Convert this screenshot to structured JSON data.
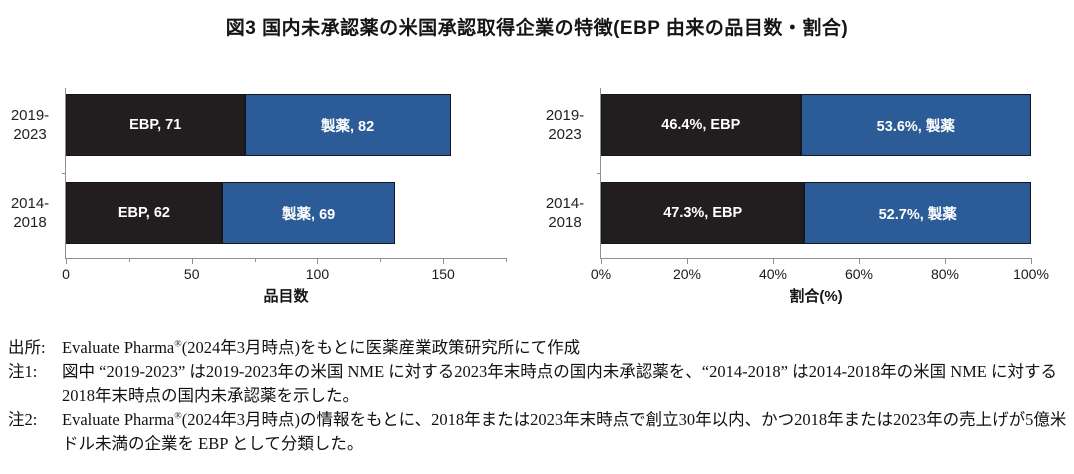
{
  "title": "図3 国内未承認薬の米国承認取得企業の特徴(EBP 由来の品目数・割合)",
  "colors": {
    "ebp_bar": "#221e1f",
    "pharma_bar": "#2c5c98",
    "bar_label_text": "#ffffff",
    "axis": "#909090"
  },
  "chart_data": [
    {
      "type": "bar",
      "orientation": "horizontal",
      "stacked": true,
      "categories": [
        [
          "2019-",
          "2023"
        ],
        [
          "2014-",
          "2018"
        ]
      ],
      "series": [
        {
          "name": "EBP",
          "values": [
            71,
            62
          ],
          "color": "#221e1f"
        },
        {
          "name": "製薬",
          "values": [
            82,
            69
          ],
          "color": "#2c5c98"
        }
      ],
      "bar_labels": [
        [
          "EBP, 71",
          "製薬, 82"
        ],
        [
          "EBP, 62",
          "製薬, 69"
        ]
      ],
      "xlabel": "品目数",
      "xlim": [
        0,
        175
      ],
      "grid": false,
      "legend": "none",
      "xticks": [
        {
          "value": 0,
          "label": "0"
        },
        {
          "value": 25,
          "label": ""
        },
        {
          "value": 50,
          "label": "50"
        },
        {
          "value": 75,
          "label": ""
        },
        {
          "value": 100,
          "label": "100"
        },
        {
          "value": 125,
          "label": ""
        },
        {
          "value": 150,
          "label": "150"
        },
        {
          "value": 175,
          "label": ""
        }
      ]
    },
    {
      "type": "bar",
      "orientation": "horizontal",
      "stacked": true,
      "categories": [
        [
          "2019-",
          "2023"
        ],
        [
          "2014-",
          "2018"
        ]
      ],
      "series": [
        {
          "name": "EBP",
          "values": [
            46.4,
            47.3
          ],
          "color": "#221e1f"
        },
        {
          "name": "製薬",
          "values": [
            53.6,
            52.7
          ],
          "color": "#2c5c98"
        }
      ],
      "bar_labels": [
        [
          "46.4%, EBP",
          "53.6%, 製薬"
        ],
        [
          "47.3%, EBP",
          "52.7%, 製薬"
        ]
      ],
      "xlabel": "割合(%)",
      "xlim": [
        0,
        100
      ],
      "grid": false,
      "legend": "none",
      "xticks": [
        {
          "value": 0,
          "label": "0%"
        },
        {
          "value": 20,
          "label": "20%"
        },
        {
          "value": 40,
          "label": "40%"
        },
        {
          "value": 60,
          "label": "60%"
        },
        {
          "value": 80,
          "label": "80%"
        },
        {
          "value": 100,
          "label": "100%"
        }
      ]
    }
  ],
  "notes": {
    "source": {
      "label": "出所:",
      "pre": "Evaluate Pharma",
      "sup": "®",
      "post": "(2024年3月時点)をもとに医薬産業政策研究所にて作成"
    },
    "note1": {
      "label": "注1:",
      "pre": "図中 “2019-2023” は2019-2023年の米国 NME に対する2023年末時点の国内未承認薬を、“2014-2018” は2014-2018年の米国 NME に対する2018年末時点の国内未承認薬を示した。",
      "sup": "",
      "post": ""
    },
    "note2": {
      "label": "注2:",
      "pre": "Evaluate Pharma",
      "sup": "®",
      "post": "(2024年3月時点)の情報をもとに、2018年または2023年末時点で創立30年以内、かつ2018年または2023年の売上げが5億米ドル未満の企業を EBP として分類した。"
    }
  }
}
